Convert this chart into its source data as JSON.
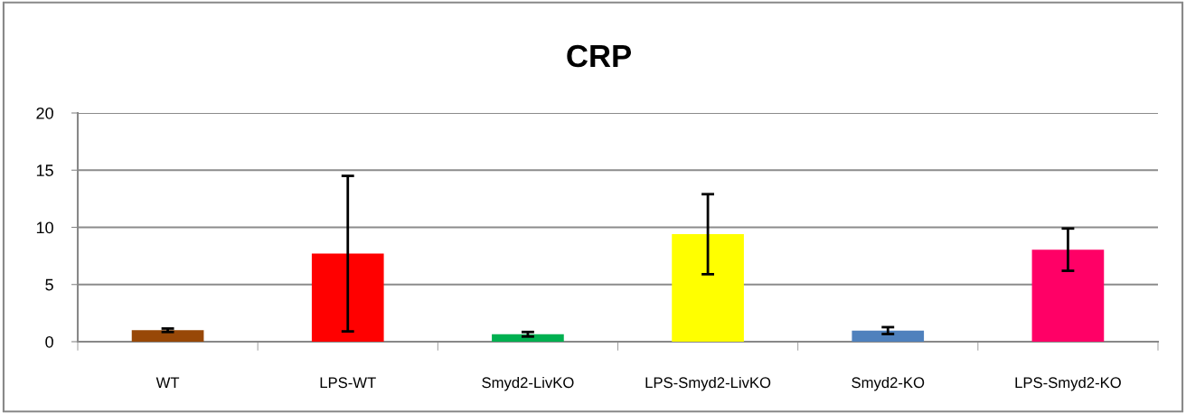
{
  "chart_data": {
    "type": "bar",
    "title": "CRP",
    "categories": [
      "WT",
      "LPS-WT",
      "Smyd2-LivKO",
      "LPS-Smyd2-LivKO",
      "Smyd2-KO",
      "LPS-Smyd2-KO"
    ],
    "values": [
      1.0,
      7.7,
      0.65,
      9.4,
      0.97,
      8.05
    ],
    "errors": [
      0.15,
      6.8,
      0.2,
      3.5,
      0.3,
      1.85
    ],
    "colors": [
      "#984807",
      "#ff0000",
      "#00b050",
      "#ffff00",
      "#4f81bd",
      "#ff0066"
    ],
    "ylim": [
      0,
      20
    ],
    "yticks": [
      0,
      5,
      10,
      15,
      20
    ],
    "grid": "y",
    "legend": false
  }
}
